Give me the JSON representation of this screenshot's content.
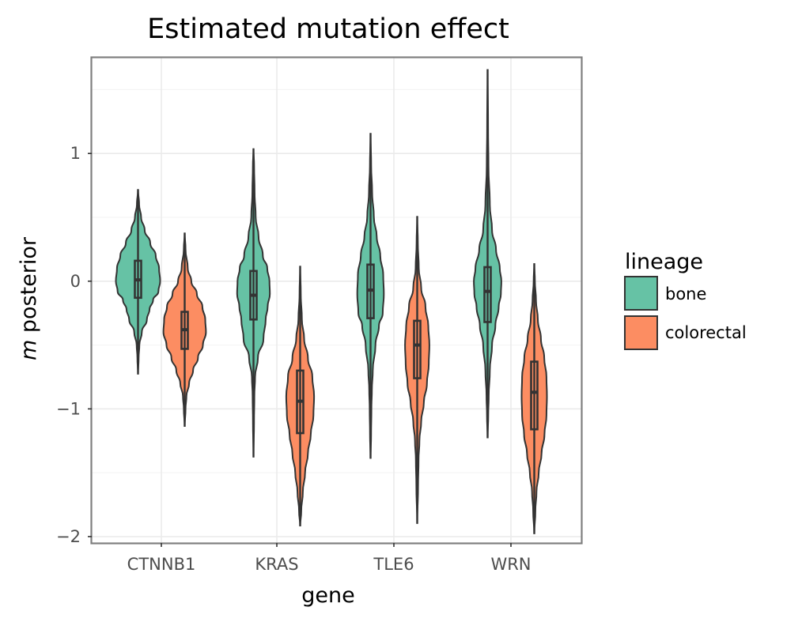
{
  "chart_data": {
    "type": "violin",
    "title": "Estimated mutation effect",
    "xlabel": "gene",
    "ylabel_italic": "m",
    "ylabel_rest": " posterior",
    "ylim": [
      -2.05,
      1.75
    ],
    "yticks": [
      1,
      0,
      -1,
      -2
    ],
    "ytick_labels": [
      "1",
      "0",
      "−1",
      "−2"
    ],
    "categories": [
      "CTNNB1",
      "KRAS",
      "TLE6",
      "WRN"
    ],
    "grid": true,
    "legend": {
      "title": "lineage",
      "placement": "right",
      "entries": [
        {
          "label": "bone",
          "color": "#66c2a5"
        },
        {
          "label": "colorectal",
          "color": "#fc8d62"
        }
      ]
    },
    "series": [
      {
        "name": "bone",
        "color": "#66c2a5",
        "values": [
          {
            "gene": "CTNNB1",
            "min": -0.73,
            "q1": -0.13,
            "median": 0.01,
            "q3": 0.16,
            "max": 0.72,
            "profile": [
              [
                0.72,
                0.0
              ],
              [
                0.6,
                0.05
              ],
              [
                0.5,
                0.14
              ],
              [
                0.4,
                0.3
              ],
              [
                0.3,
                0.55
              ],
              [
                0.2,
                0.8
              ],
              [
                0.1,
                0.95
              ],
              [
                0.0,
                1.0
              ],
              [
                -0.08,
                0.92
              ],
              [
                -0.15,
                0.68
              ],
              [
                -0.22,
                0.52
              ],
              [
                -0.3,
                0.4
              ],
              [
                -0.4,
                0.17
              ],
              [
                -0.5,
                0.06
              ],
              [
                -0.6,
                0.03
              ],
              [
                -0.73,
                0.0
              ]
            ]
          },
          {
            "gene": "KRAS",
            "min": -1.38,
            "q1": -0.3,
            "median": -0.11,
            "q3": 0.08,
            "max": 1.04,
            "profile": [
              [
                1.04,
                0.0
              ],
              [
                0.9,
                0.03
              ],
              [
                0.7,
                0.05
              ],
              [
                0.5,
                0.1
              ],
              [
                0.35,
                0.23
              ],
              [
                0.2,
                0.42
              ],
              [
                0.1,
                0.62
              ],
              [
                0.0,
                0.72
              ],
              [
                -0.1,
                0.74
              ],
              [
                -0.2,
                0.64
              ],
              [
                -0.3,
                0.55
              ],
              [
                -0.45,
                0.45
              ],
              [
                -0.6,
                0.2
              ],
              [
                -0.75,
                0.07
              ],
              [
                -0.9,
                0.04
              ],
              [
                -1.1,
                0.025
              ],
              [
                -1.38,
                0.0
              ]
            ]
          },
          {
            "gene": "TLE6",
            "min": -1.39,
            "q1": -0.29,
            "median": -0.07,
            "q3": 0.13,
            "max": 1.16,
            "profile": [
              [
                1.16,
                0.0
              ],
              [
                0.9,
                0.03
              ],
              [
                0.7,
                0.07
              ],
              [
                0.5,
                0.15
              ],
              [
                0.35,
                0.28
              ],
              [
                0.2,
                0.44
              ],
              [
                0.05,
                0.57
              ],
              [
                -0.1,
                0.6
              ],
              [
                -0.25,
                0.55
              ],
              [
                -0.35,
                0.38
              ],
              [
                -0.5,
                0.22
              ],
              [
                -0.7,
                0.1
              ],
              [
                -0.85,
                0.06
              ],
              [
                -1.0,
                0.04
              ],
              [
                -1.2,
                0.025
              ],
              [
                -1.39,
                0.0
              ]
            ]
          },
          {
            "gene": "WRN",
            "min": -1.23,
            "q1": -0.32,
            "median": -0.08,
            "q3": 0.11,
            "max": 1.66,
            "profile": [
              [
                1.66,
                0.0
              ],
              [
                1.2,
                0.02
              ],
              [
                0.9,
                0.04
              ],
              [
                0.6,
                0.1
              ],
              [
                0.4,
                0.2
              ],
              [
                0.25,
                0.38
              ],
              [
                0.1,
                0.55
              ],
              [
                0.0,
                0.62
              ],
              [
                -0.1,
                0.6
              ],
              [
                -0.2,
                0.5
              ],
              [
                -0.35,
                0.35
              ],
              [
                -0.5,
                0.2
              ],
              [
                -0.7,
                0.1
              ],
              [
                -0.9,
                0.05
              ],
              [
                -1.05,
                0.03
              ],
              [
                -1.23,
                0.0
              ]
            ]
          }
        ]
      },
      {
        "name": "colorectal",
        "color": "#fc8d62",
        "values": [
          {
            "gene": "CTNNB1",
            "min": -1.14,
            "q1": -0.53,
            "median": -0.38,
            "q3": -0.24,
            "max": 0.38,
            "profile": [
              [
                0.38,
                0.0
              ],
              [
                0.25,
                0.04
              ],
              [
                0.1,
                0.14
              ],
              [
                0.0,
                0.3
              ],
              [
                -0.1,
                0.55
              ],
              [
                -0.2,
                0.8
              ],
              [
                -0.3,
                0.93
              ],
              [
                -0.4,
                0.96
              ],
              [
                -0.5,
                0.82
              ],
              [
                -0.6,
                0.6
              ],
              [
                -0.7,
                0.38
              ],
              [
                -0.8,
                0.2
              ],
              [
                -0.9,
                0.08
              ],
              [
                -1.0,
                0.04
              ],
              [
                -1.14,
                0.0
              ]
            ]
          },
          {
            "gene": "KRAS",
            "min": -1.92,
            "q1": -1.19,
            "median": -0.94,
            "q3": -0.7,
            "max": 0.12,
            "profile": [
              [
                0.12,
                0.0
              ],
              [
                -0.1,
                0.03
              ],
              [
                -0.3,
                0.08
              ],
              [
                -0.45,
                0.18
              ],
              [
                -0.6,
                0.35
              ],
              [
                -0.75,
                0.55
              ],
              [
                -0.9,
                0.63
              ],
              [
                -1.05,
                0.6
              ],
              [
                -1.2,
                0.48
              ],
              [
                -1.35,
                0.35
              ],
              [
                -1.5,
                0.22
              ],
              [
                -1.65,
                0.12
              ],
              [
                -1.8,
                0.05
              ],
              [
                -1.92,
                0.0
              ]
            ]
          },
          {
            "gene": "TLE6",
            "min": -1.9,
            "q1": -0.76,
            "median": -0.5,
            "q3": -0.31,
            "max": 0.51,
            "profile": [
              [
                0.51,
                0.0
              ],
              [
                0.3,
                0.03
              ],
              [
                0.1,
                0.07
              ],
              [
                -0.05,
                0.18
              ],
              [
                -0.2,
                0.37
              ],
              [
                -0.35,
                0.5
              ],
              [
                -0.5,
                0.55
              ],
              [
                -0.65,
                0.52
              ],
              [
                -0.8,
                0.44
              ],
              [
                -0.95,
                0.3
              ],
              [
                -1.1,
                0.18
              ],
              [
                -1.25,
                0.1
              ],
              [
                -1.4,
                0.06
              ],
              [
                -1.6,
                0.04
              ],
              [
                -1.9,
                0.0
              ]
            ]
          },
          {
            "gene": "WRN",
            "min": -1.98,
            "q1": -1.16,
            "median": -0.87,
            "q3": -0.63,
            "max": 0.14,
            "profile": [
              [
                0.14,
                0.0
              ],
              [
                0.0,
                0.03
              ],
              [
                -0.15,
                0.08
              ],
              [
                -0.3,
                0.16
              ],
              [
                -0.45,
                0.3
              ],
              [
                -0.6,
                0.45
              ],
              [
                -0.75,
                0.55
              ],
              [
                -0.9,
                0.57
              ],
              [
                -1.05,
                0.55
              ],
              [
                -1.2,
                0.46
              ],
              [
                -1.35,
                0.33
              ],
              [
                -1.5,
                0.2
              ],
              [
                -1.65,
                0.1
              ],
              [
                -1.8,
                0.05
              ],
              [
                -1.98,
                0.0
              ]
            ]
          }
        ]
      }
    ]
  }
}
